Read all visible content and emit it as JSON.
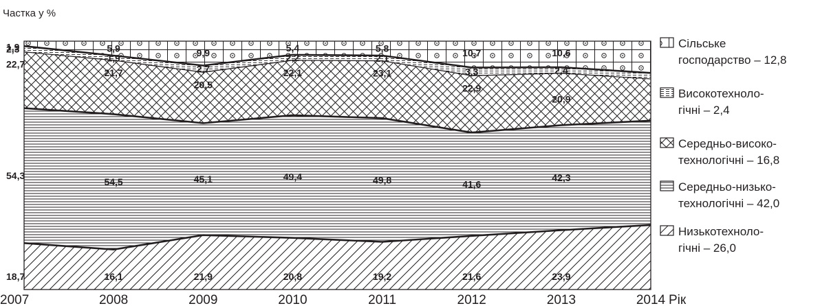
{
  "chart_data": {
    "type": "area",
    "stacked": true,
    "percent": true,
    "ylabel": "Частка у %",
    "xlabel": "Рік",
    "categories": [
      "2007",
      "2008",
      "2009",
      "2010",
      "2011",
      "2012",
      "2013",
      "2014"
    ],
    "ylim": [
      0,
      100
    ],
    "grid": false,
    "legend_position": "right",
    "series": [
      {
        "key": "low",
        "name": "Низькотехнологічні – 26,0",
        "legend_lines": [
          "Низькотехноло-",
          "гічні – 26,0"
        ],
        "pattern": "diagonal-hatch",
        "values": [
          18.7,
          16.1,
          21.9,
          20.8,
          19.2,
          21.6,
          23.9,
          26.0
        ],
        "labels": [
          "18,7",
          "16,1",
          "21,9",
          "20,8",
          "19,2",
          "21,6",
          "23,9",
          null
        ]
      },
      {
        "key": "medlow",
        "name": "Середньо-низькотехнологічні – 42,0",
        "legend_lines": [
          "Середньо-низько-",
          "технологічні – 42,0"
        ],
        "pattern": "horizontal-lines",
        "values": [
          54.3,
          54.5,
          45.1,
          49.4,
          49.8,
          41.6,
          42.3,
          42.0
        ],
        "labels": [
          "54,3",
          "54,5",
          "45,1",
          "49,4",
          "49,8",
          "41,6",
          "42,3",
          null
        ]
      },
      {
        "key": "medhigh",
        "name": "Середньо-високотехнологічні – 16,8",
        "legend_lines": [
          "Середньо-високо-",
          "технологічні – 16,8"
        ],
        "pattern": "crosshatch",
        "values": [
          22.7,
          21.7,
          20.5,
          22.1,
          23.1,
          22.9,
          20.9,
          16.8
        ],
        "labels": [
          "22,7",
          "21,7",
          "20,5",
          "22,1",
          "23,1",
          "22,9",
          "20,9",
          null
        ]
      },
      {
        "key": "high",
        "name": "Високотехнологічні – 2,4",
        "legend_lines": [
          "Високотехноло-",
          "гічні – 2,4"
        ],
        "pattern": "dashed-lines",
        "values": [
          2.3,
          1.9,
          2.7,
          2.2,
          2.1,
          3.3,
          2.4,
          2.4
        ],
        "labels": [
          "2,3",
          "1,9",
          "2,7",
          "2,2",
          "2,1",
          "3,3",
          "2,4",
          null
        ]
      },
      {
        "key": "agri",
        "name": "Сільське господарство – 12,8",
        "legend_lines": [
          "Сільське",
          "господарство – 12,8"
        ],
        "pattern": "dotted-circles",
        "values": [
          1.9,
          5.9,
          9.9,
          5.4,
          5.8,
          10.7,
          10.6,
          12.8
        ],
        "labels": [
          "1,9",
          "5,9",
          "9,9",
          "5,4",
          "5,8",
          "10,7",
          "10,6",
          null
        ]
      }
    ]
  }
}
